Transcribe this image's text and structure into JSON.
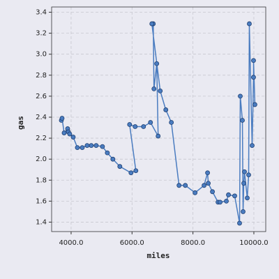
{
  "chart_data": {
    "type": "line",
    "x_label": "miles",
    "y_label": "gas",
    "x": [
      3680,
      3703,
      3771,
      3886,
      3909,
      3954,
      4069,
      4206,
      4366,
      4526,
      4663,
      4823,
      5029,
      5189,
      5371,
      5600,
      5966,
      6126,
      5920,
      6103,
      6377,
      6606,
      6857,
      6811,
      6720,
      6697,
      6651,
      6926,
      7109,
      7291,
      7543,
      7749,
      8069,
      8366,
      8480,
      8503,
      8640,
      8823,
      8891,
      9097,
      9166,
      9371,
      9531,
      9554,
      9623,
      9646,
      9669,
      9691,
      9783,
      9829,
      9851,
      9943,
      9989,
      9989,
      10034
    ],
    "series": [
      {
        "color": "#4a7cc0",
        "values": [
          2.37,
          2.39,
          2.25,
          2.29,
          2.26,
          2.24,
          2.21,
          2.11,
          2.11,
          2.13,
          2.13,
          2.13,
          2.12,
          2.06,
          2.0,
          1.93,
          1.87,
          1.89,
          2.33,
          2.31,
          2.31,
          2.35,
          2.22,
          2.91,
          2.67,
          3.29,
          3.29,
          2.65,
          2.47,
          2.35,
          1.75,
          1.75,
          1.68,
          1.75,
          1.87,
          1.77,
          1.69,
          1.59,
          1.59,
          1.6,
          1.66,
          1.65,
          1.39,
          2.6,
          2.37,
          1.5,
          1.77,
          1.88,
          1.63,
          1.85,
          3.29,
          2.13,
          2.78,
          2.94,
          2.52
        ]
      }
    ],
    "xlim": [
      3360,
      10390
    ],
    "ylim": [
      1.31,
      3.45
    ],
    "xticks": [
      {
        "value": 4000,
        "label": "4000.0"
      },
      {
        "value": 6000,
        "label": "6000.0"
      },
      {
        "value": 8000,
        "label": "8000.0"
      },
      {
        "value": 10000,
        "label": "10000.0"
      }
    ],
    "yticks": [
      1.4,
      1.6,
      1.8,
      {
        "value": 2.0,
        "label": "2.0"
      },
      2.2,
      2.4,
      2.6,
      2.8,
      {
        "value": 3.0,
        "label": "3.0"
      },
      3.2,
      3.4
    ],
    "grid": true
  }
}
